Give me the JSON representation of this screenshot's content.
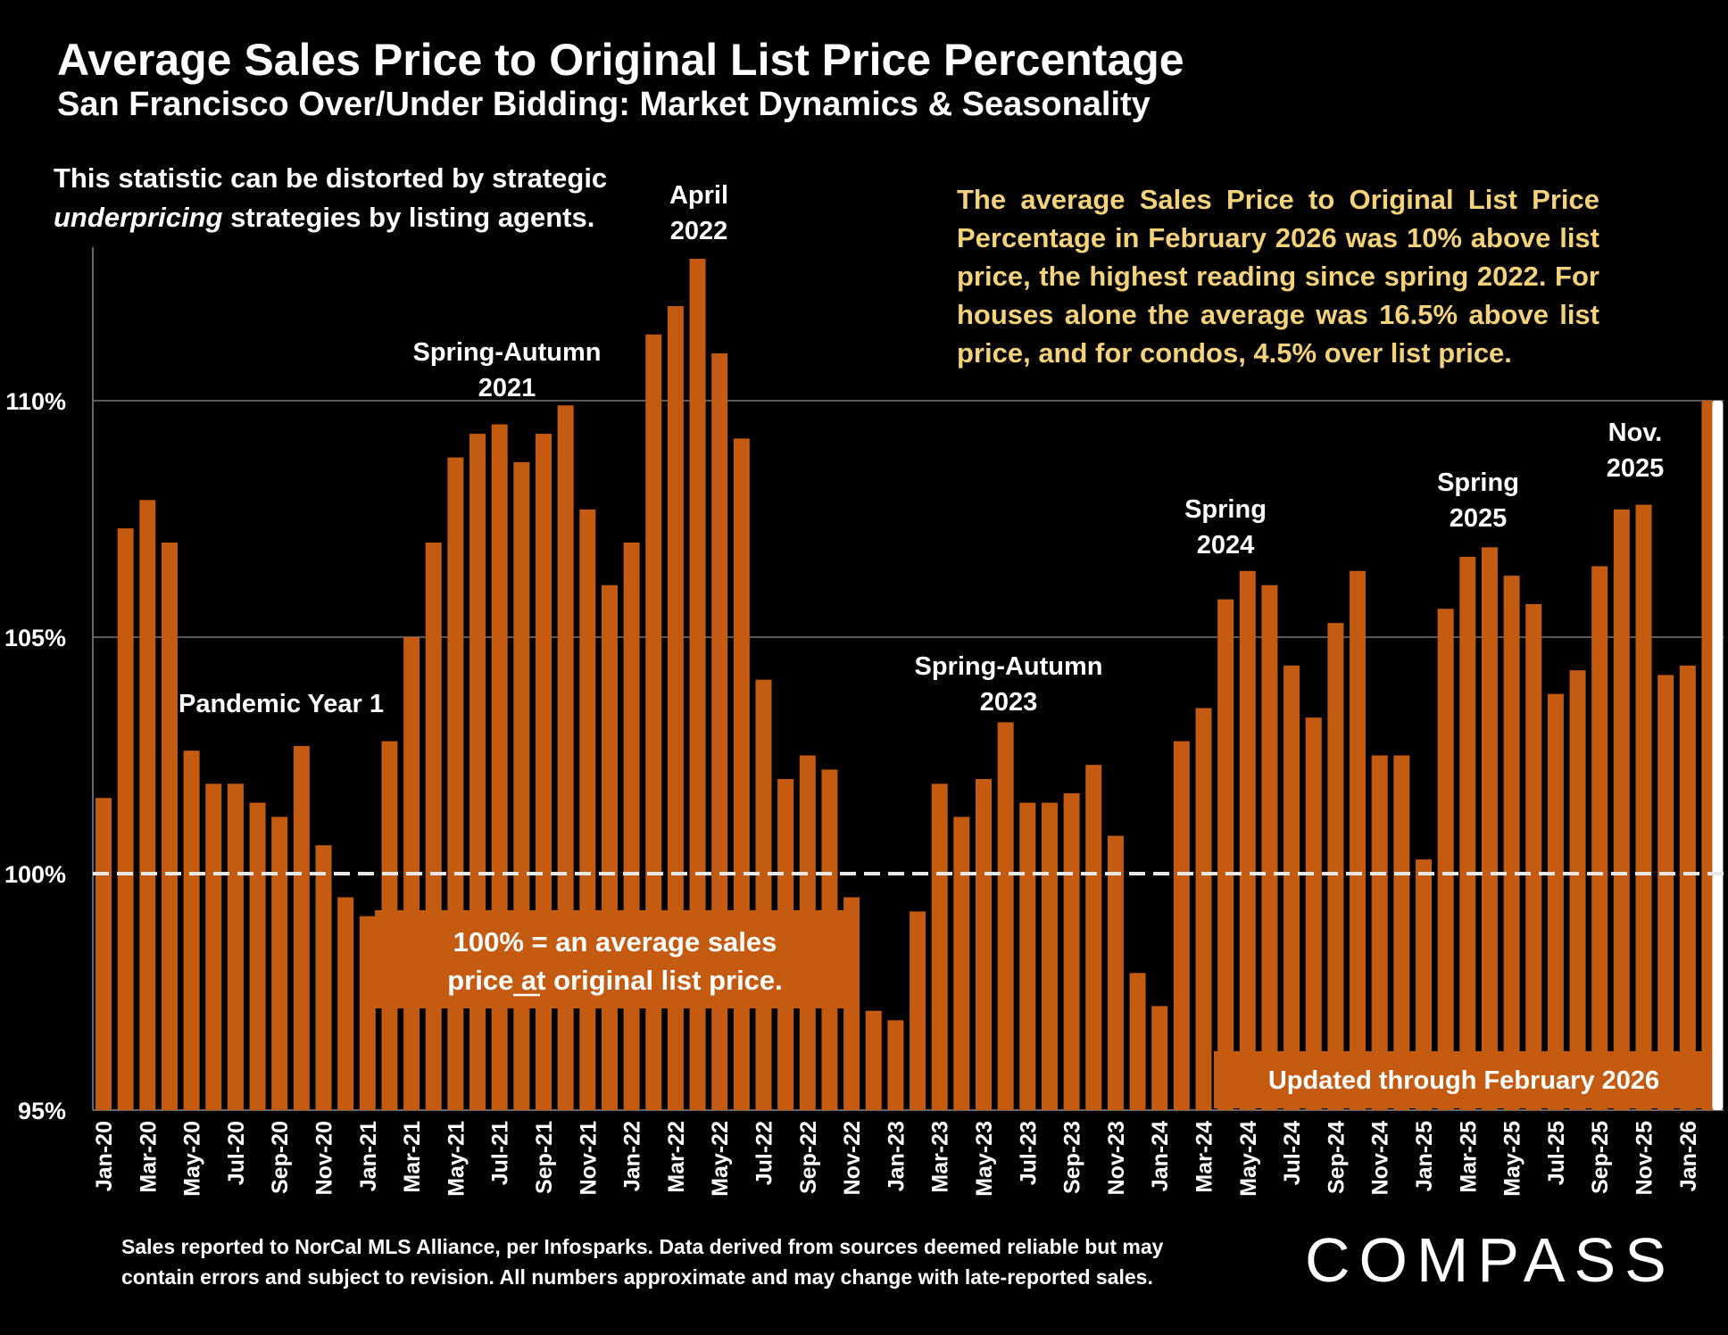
{
  "title": "Average Sales Price to Original List Price Percentage",
  "subtitle": "San Francisco Over/Under Bidding: Market Dynamics & Seasonality",
  "note_left": {
    "line1": "This statistic can be distorted by strategic",
    "line2_italic": "underpricing",
    "line2_rest": " strategies by listing agents."
  },
  "note_right": "The average Sales Price to Original List Price Percentage in February 2026 was 10% above list price, the highest reading since spring 2022. For houses alone the average was 16.5% above list price, and for condos, 4.5% over list price.",
  "footer": {
    "line1": "Sales reported to NorCal MLS Alliance, per Infosparks. Data derived from sources deemed reliable but may",
    "line2": "contain errors and subject to revision. All numbers approximate and may change with late-reported sales."
  },
  "logo": "COMPASS",
  "colors": {
    "bar": "#c55a11",
    "background": "#000000",
    "note": "#f4d27a",
    "baseline": "#ffffff"
  },
  "chart_data": {
    "type": "bar",
    "ylim": [
      95,
      113
    ],
    "yticks": [
      "95%",
      "100%",
      "105%",
      "110%"
    ],
    "ytick_values": [
      95,
      100,
      105,
      110
    ],
    "reference_line": 100,
    "xtick_labels": [
      "Jan-20",
      "Mar-20",
      "May-20",
      "Jul-20",
      "Sep-20",
      "Nov-20",
      "Jan-21",
      "Mar-21",
      "May-21",
      "Jul-21",
      "Sep-21",
      "Nov-21",
      "Jan-22",
      "Mar-22",
      "May-22",
      "Jul-22",
      "Sep-22",
      "Nov-22",
      "Jan-23",
      "Mar-23",
      "May-23",
      "Jul-23",
      "Sep-23",
      "Nov-23",
      "Jan-24",
      "Mar-24",
      "May-24",
      "Jul-24",
      "Sep-24",
      "Nov-24",
      "Jan-25",
      "Mar-25",
      "May-25",
      "Jul-25",
      "Sep-25",
      "Nov-25",
      "Jan-26"
    ],
    "categories": [
      "Jan-20",
      "Feb-20",
      "Mar-20",
      "Apr-20",
      "May-20",
      "Jun-20",
      "Jul-20",
      "Aug-20",
      "Sep-20",
      "Oct-20",
      "Nov-20",
      "Dec-20",
      "Jan-21",
      "Feb-21",
      "Mar-21",
      "Apr-21",
      "May-21",
      "Jun-21",
      "Jul-21",
      "Aug-21",
      "Sep-21",
      "Oct-21",
      "Nov-21",
      "Dec-21",
      "Jan-22",
      "Feb-22",
      "Mar-22",
      "Apr-22",
      "May-22",
      "Jun-22",
      "Jul-22",
      "Aug-22",
      "Sep-22",
      "Oct-22",
      "Nov-22",
      "Dec-22",
      "Jan-23",
      "Feb-23",
      "Mar-23",
      "Apr-23",
      "May-23",
      "Jun-23",
      "Jul-23",
      "Aug-23",
      "Sep-23",
      "Oct-23",
      "Nov-23",
      "Dec-23",
      "Jan-24",
      "Feb-24",
      "Mar-24",
      "Apr-24",
      "May-24",
      "Jun-24",
      "Jul-24",
      "Aug-24",
      "Sep-24",
      "Oct-24",
      "Nov-24",
      "Dec-24",
      "Jan-25",
      "Feb-25",
      "Mar-25",
      "Apr-25",
      "May-25",
      "Jun-25",
      "Jul-25",
      "Aug-25",
      "Sep-25",
      "Oct-25",
      "Nov-25",
      "Dec-25",
      "Jan-26",
      "Feb-26"
    ],
    "values": [
      101.6,
      107.3,
      107.9,
      107.0,
      102.6,
      101.9,
      101.9,
      101.5,
      101.2,
      102.7,
      100.6,
      99.5,
      99.1,
      102.8,
      105.0,
      107.0,
      108.8,
      109.3,
      109.5,
      108.7,
      109.3,
      109.9,
      107.7,
      106.1,
      107.0,
      111.4,
      112.0,
      113.0,
      111.0,
      109.2,
      104.1,
      102.0,
      102.5,
      102.2,
      99.5,
      97.1,
      96.9,
      99.2,
      101.9,
      101.2,
      102.0,
      103.2,
      101.5,
      101.5,
      101.7,
      102.3,
      100.8,
      97.9,
      97.2,
      102.8,
      103.5,
      105.8,
      106.4,
      106.1,
      104.4,
      103.3,
      105.3,
      106.4,
      102.5,
      102.5,
      100.3,
      105.6,
      106.7,
      106.9,
      106.3,
      105.7,
      103.8,
      104.3,
      106.5,
      107.7,
      107.8,
      104.2,
      104.4,
      110.0
    ],
    "highlight_last": true,
    "annotations": [
      {
        "text_lines": [
          "Pandemic Year 1"
        ]
      },
      {
        "text_lines": [
          "Spring-Autumn",
          "2021"
        ]
      },
      {
        "text_lines": [
          "April",
          "2022"
        ]
      },
      {
        "text_lines": [
          "Spring-Autumn",
          "2023"
        ]
      },
      {
        "text_lines": [
          "Spring",
          "2024"
        ]
      },
      {
        "text_lines": [
          "Spring",
          "2025"
        ]
      },
      {
        "text_lines": [
          "Nov.",
          "2025"
        ]
      }
    ],
    "boxes": [
      {
        "text_lines": [
          "100% = an average sales",
          "price at original list price."
        ]
      },
      {
        "text_lines": [
          "Updated through February 2026"
        ]
      }
    ]
  }
}
